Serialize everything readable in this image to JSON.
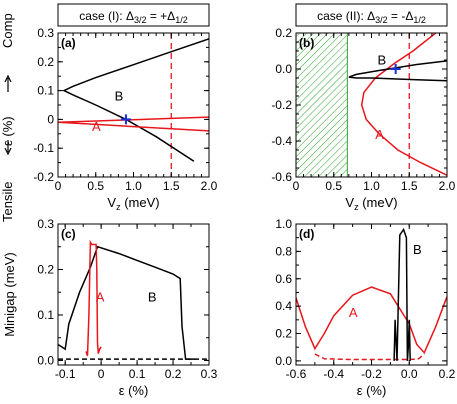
{
  "figure": {
    "side_label_tensile": "Tensile",
    "side_label_comp": "Comp",
    "side_label_eps": "ε (%)",
    "minigap_label": "Minigap (meV)"
  },
  "colors": {
    "black": "#000000",
    "red": "#e8161b",
    "blue": "#1a2fd6",
    "hatch": "#2aa52a"
  },
  "chart_data": [
    {
      "panel": "(a)",
      "type": "line",
      "title_prefix": "case (I):",
      "title_math": "Δ3/2 = +Δ1/2",
      "xlabel": "Vz (meV)",
      "xlim": [
        0,
        2.0
      ],
      "ylim": [
        -0.2,
        0.3
      ],
      "xticks": [
        "0",
        "0.5",
        "1.0",
        "1.5",
        "2.0"
      ],
      "yticks": [
        "-0.2",
        "-0.1",
        "0",
        "0.1",
        "0.2",
        "0.3"
      ],
      "series": [
        {
          "label": "B",
          "color": "black",
          "x": [
            2.0,
            1.5,
            1.0,
            0.5,
            0.2,
            0.08,
            0.2,
            0.5,
            0.9,
            1.3,
            1.8
          ],
          "y": [
            0.28,
            0.235,
            0.19,
            0.145,
            0.115,
            0.1,
            0.085,
            0.05,
            0.0,
            -0.06,
            -0.145
          ]
        },
        {
          "label": "A",
          "color": "red",
          "x": [
            0,
            0.5,
            1.0,
            1.5,
            2.0
          ],
          "y": [
            -0.01,
            -0.0055,
            -0.001,
            0.0035,
            0.008
          ]
        },
        {
          "label": "",
          "color": "red",
          "x": [
            0,
            0.5,
            1.0,
            1.5,
            2.0
          ],
          "y": [
            -0.01,
            -0.0175,
            -0.025,
            -0.0325,
            -0.04
          ]
        }
      ],
      "vline": {
        "x": 1.5,
        "style": "dashed",
        "color": "red"
      },
      "marker": {
        "x": 0.9,
        "y": 0.0,
        "symbol": "+",
        "color": "blue"
      },
      "labels": [
        {
          "text": "B",
          "x": 0.75,
          "y": 0.065,
          "color": "black"
        },
        {
          "text": "A",
          "x": 0.45,
          "y": -0.04,
          "color": "red"
        }
      ]
    },
    {
      "panel": "(b)",
      "type": "line",
      "title_prefix": "case (II):",
      "title_math": "Δ3/2 = -Δ1/2",
      "xlabel": "Vz (meV)",
      "xlim": [
        0,
        2.0
      ],
      "ylim": [
        -0.6,
        0.2
      ],
      "xticks": [
        "0",
        "0.5",
        "1.0",
        "1.5",
        "2.0"
      ],
      "yticks": [
        "-0.6",
        "-0.4",
        "-0.2",
        "0.0",
        "0.2"
      ],
      "hatched_region_x": [
        0,
        0.68
      ],
      "series": [
        {
          "label": "A",
          "color": "red",
          "x": [
            1.85,
            1.55,
            1.3,
            1.05,
            0.9,
            0.87,
            0.93,
            1.1,
            1.35,
            1.65,
            2.0
          ],
          "y": [
            0.2,
            0.1,
            0.03,
            -0.05,
            -0.13,
            -0.2,
            -0.28,
            -0.36,
            -0.45,
            -0.52,
            -0.59
          ]
        },
        {
          "label": "B",
          "color": "black",
          "x": [
            2.0,
            1.6,
            1.3,
            1.0,
            0.8,
            0.7,
            0.8,
            1.0,
            1.3,
            1.6,
            2.0
          ],
          "y": [
            0.045,
            0.025,
            0.005,
            -0.015,
            -0.03,
            -0.045,
            -0.05,
            -0.05,
            -0.055,
            -0.06,
            -0.065
          ]
        }
      ],
      "vline": {
        "x": 1.5,
        "style": "dashed",
        "color": "red"
      },
      "marker": {
        "x": 1.32,
        "y": 0.0,
        "symbol": "+",
        "color": "blue"
      },
      "labels": [
        {
          "text": "B",
          "x": 1.08,
          "y": 0.025,
          "color": "black"
        },
        {
          "text": "A",
          "x": 1.05,
          "y": -0.39,
          "color": "red"
        }
      ]
    },
    {
      "panel": "(c)",
      "type": "line",
      "xlabel": "ε (%)",
      "ylabel": "Minigap (meV)",
      "xlim": [
        -0.12,
        0.3
      ],
      "ylim": [
        -0.01,
        0.3
      ],
      "xticks": [
        "-0.1",
        "0",
        "0.1",
        "0.2",
        "0.3"
      ],
      "yticks": [
        "0.0",
        "0.1",
        "0.2",
        "0.3"
      ],
      "series": [
        {
          "label": "B",
          "color": "black",
          "x": [
            -0.12,
            -0.1,
            -0.09,
            -0.06,
            -0.03,
            -0.01,
            0.05,
            0.1,
            0.15,
            0.2,
            0.22,
            0.225,
            0.235,
            0.26
          ],
          "y": [
            0.035,
            0.025,
            0.08,
            0.15,
            0.205,
            0.25,
            0.235,
            0.22,
            0.205,
            0.19,
            0.18,
            0.075,
            0.003,
            0.003
          ]
        },
        {
          "label": "A",
          "color": "red",
          "x": [
            -0.042,
            -0.038,
            -0.034,
            -0.03,
            -0.026,
            -0.014,
            -0.012,
            -0.01,
            -0.008,
            -0.004,
            0.0
          ],
          "y": [
            0.02,
            0.01,
            0.1,
            0.26,
            0.255,
            0.255,
            0.2,
            0.04,
            0.015,
            0.025,
            0.03
          ]
        },
        {
          "label": "",
          "color": "black",
          "style": "dashed",
          "x": [
            -0.12,
            0.3
          ],
          "y": [
            0.003,
            0.003
          ]
        }
      ],
      "labels": [
        {
          "text": "A",
          "x": -0.015,
          "y": 0.13,
          "color": "red"
        },
        {
          "text": "B",
          "x": 0.13,
          "y": 0.13,
          "color": "black"
        }
      ]
    },
    {
      "panel": "(d)",
      "type": "line",
      "xlabel": "ε (%)",
      "xlim": [
        -0.6,
        0.2
      ],
      "ylim": [
        -0.03,
        1.0
      ],
      "xticks": [
        "-0.6",
        "-0.4",
        "-0.2",
        "0.0",
        "0.2"
      ],
      "yticks": [
        "0.0",
        "0.2",
        "0.4",
        "0.6",
        "0.8",
        "1.0"
      ],
      "series": [
        {
          "label": "A",
          "color": "red",
          "x": [
            -0.6,
            -0.55,
            -0.5,
            -0.45,
            -0.4,
            -0.3,
            -0.2,
            -0.1,
            0.0,
            0.04,
            0.08,
            0.14,
            0.2
          ],
          "y": [
            0.46,
            0.25,
            0.09,
            0.2,
            0.33,
            0.48,
            0.54,
            0.49,
            0.27,
            0.12,
            0.06,
            0.25,
            0.47
          ]
        },
        {
          "label": "",
          "color": "red",
          "style": "dashed",
          "x": [
            -0.5,
            -0.45,
            -0.3,
            -0.1,
            0.0,
            0.05,
            0.08
          ],
          "y": [
            0.05,
            0.015,
            0.01,
            0.01,
            0.01,
            0.015,
            0.05
          ]
        },
        {
          "label": "B",
          "color": "black",
          "x": [
            -0.08,
            -0.075,
            -0.065,
            -0.05,
            -0.03,
            -0.015,
            -0.01,
            -0.005,
            0.0,
            0.005
          ],
          "y": [
            0.0,
            0.3,
            0.0,
            0.92,
            0.96,
            0.9,
            0.0,
            0.1,
            0.3,
            0.0
          ]
        }
      ],
      "labels": [
        {
          "text": "B",
          "x": 0.02,
          "y": 0.78,
          "color": "black"
        },
        {
          "text": "A",
          "x": -0.32,
          "y": 0.32,
          "color": "red"
        }
      ]
    }
  ]
}
